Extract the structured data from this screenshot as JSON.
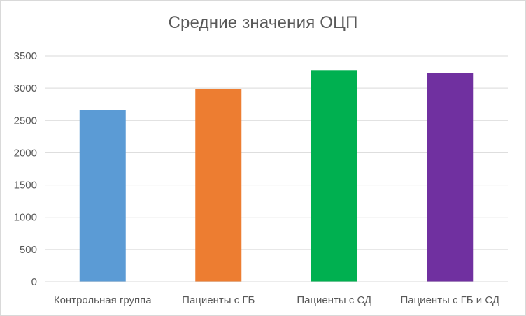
{
  "chart_data": {
    "type": "bar",
    "title": "Средние значения ОЦП",
    "xlabel": "",
    "ylabel": "",
    "categories": [
      "Контрольная группа",
      "Пациенты с ГБ",
      "Пациенты с СД",
      "Пациенты с ГБ и СД"
    ],
    "values": [
      2665,
      2990,
      3280,
      3235
    ],
    "colors": [
      "#5b9bd5",
      "#ed7d31",
      "#00b050",
      "#7030a0"
    ],
    "ylim": [
      0,
      3500
    ],
    "yticks": [
      0,
      500,
      1000,
      1500,
      2000,
      2500,
      3000,
      3500
    ],
    "grid": true,
    "legend": "none"
  }
}
